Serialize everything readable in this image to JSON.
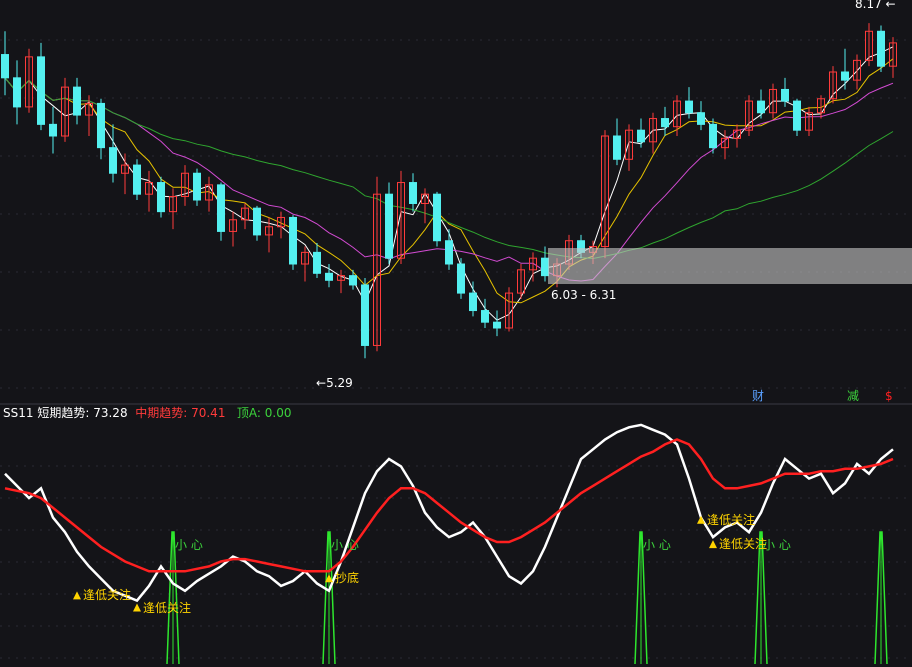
{
  "chart_data": [
    {
      "type": "candlestick",
      "price_labels": {
        "top_high": "8.17",
        "low_marker": "5.29",
        "range_band": "6.03 - 6.31"
      },
      "ylim": [
        5.0,
        8.3
      ],
      "band_range": [
        6.03,
        6.31
      ],
      "ohlc": [
        [
          7.9,
          8.1,
          7.55,
          7.7
        ],
        [
          7.7,
          7.85,
          7.3,
          7.45
        ],
        [
          7.45,
          7.95,
          7.4,
          7.88
        ],
        [
          7.88,
          8.0,
          7.25,
          7.3
        ],
        [
          7.3,
          7.45,
          7.05,
          7.2
        ],
        [
          7.2,
          7.7,
          7.15,
          7.62
        ],
        [
          7.62,
          7.7,
          7.3,
          7.38
        ],
        [
          7.38,
          7.55,
          7.2,
          7.48
        ],
        [
          7.48,
          7.52,
          7.0,
          7.1
        ],
        [
          7.1,
          7.3,
          6.8,
          6.88
        ],
        [
          6.88,
          7.05,
          6.7,
          6.95
        ],
        [
          6.95,
          7.0,
          6.65,
          6.7
        ],
        [
          6.7,
          6.9,
          6.55,
          6.8
        ],
        [
          6.8,
          6.85,
          6.5,
          6.55
        ],
        [
          6.55,
          6.75,
          6.4,
          6.68
        ],
        [
          6.68,
          6.95,
          6.6,
          6.88
        ],
        [
          6.88,
          6.92,
          6.6,
          6.65
        ],
        [
          6.65,
          6.85,
          6.55,
          6.78
        ],
        [
          6.78,
          6.8,
          6.3,
          6.38
        ],
        [
          6.38,
          6.55,
          6.25,
          6.48
        ],
        [
          6.48,
          6.62,
          6.4,
          6.58
        ],
        [
          6.58,
          6.6,
          6.3,
          6.35
        ],
        [
          6.35,
          6.5,
          6.2,
          6.42
        ],
        [
          6.42,
          6.55,
          6.32,
          6.5
        ],
        [
          6.5,
          6.52,
          6.05,
          6.1
        ],
        [
          6.1,
          6.25,
          5.95,
          6.2
        ],
        [
          6.2,
          6.28,
          5.98,
          6.02
        ],
        [
          6.02,
          6.1,
          5.9,
          5.96
        ],
        [
          5.96,
          6.05,
          5.85,
          6.0
        ],
        [
          6.0,
          6.05,
          5.88,
          5.92
        ],
        [
          5.92,
          5.98,
          5.29,
          5.4
        ],
        [
          5.4,
          6.85,
          5.35,
          6.7
        ],
        [
          6.7,
          6.8,
          6.1,
          6.15
        ],
        [
          6.15,
          6.9,
          6.1,
          6.8
        ],
        [
          6.8,
          6.88,
          6.55,
          6.62
        ],
        [
          6.62,
          6.75,
          6.45,
          6.7
        ],
        [
          6.7,
          6.72,
          6.25,
          6.3
        ],
        [
          6.3,
          6.4,
          6.05,
          6.1
        ],
        [
          6.1,
          6.15,
          5.8,
          5.85
        ],
        [
          5.85,
          5.95,
          5.65,
          5.7
        ],
        [
          5.7,
          5.8,
          5.55,
          5.6
        ],
        [
          5.6,
          5.7,
          5.48,
          5.55
        ],
        [
          5.55,
          5.9,
          5.52,
          5.85
        ],
        [
          5.85,
          6.1,
          5.8,
          6.05
        ],
        [
          6.05,
          6.2,
          5.95,
          6.15
        ],
        [
          6.15,
          6.25,
          5.95,
          6.0
        ],
        [
          6.0,
          6.15,
          5.9,
          6.1
        ],
        [
          6.1,
          6.35,
          6.05,
          6.3
        ],
        [
          6.3,
          6.35,
          6.15,
          6.2
        ],
        [
          6.2,
          6.3,
          6.1,
          6.25
        ],
        [
          6.25,
          7.25,
          6.15,
          7.2
        ],
        [
          7.2,
          7.35,
          6.95,
          7.0
        ],
        [
          7.0,
          7.3,
          6.9,
          7.25
        ],
        [
          7.25,
          7.35,
          7.1,
          7.15
        ],
        [
          7.15,
          7.4,
          7.05,
          7.35
        ],
        [
          7.35,
          7.45,
          7.2,
          7.28
        ],
        [
          7.28,
          7.55,
          7.2,
          7.5
        ],
        [
          7.5,
          7.62,
          7.35,
          7.4
        ],
        [
          7.4,
          7.5,
          7.25,
          7.3
        ],
        [
          7.3,
          7.35,
          7.05,
          7.1
        ],
        [
          7.1,
          7.25,
          7.0,
          7.18
        ],
        [
          7.18,
          7.3,
          7.1,
          7.25
        ],
        [
          7.25,
          7.55,
          7.2,
          7.5
        ],
        [
          7.5,
          7.6,
          7.35,
          7.4
        ],
        [
          7.4,
          7.65,
          7.35,
          7.6
        ],
        [
          7.6,
          7.7,
          7.45,
          7.5
        ],
        [
          7.5,
          7.52,
          7.2,
          7.25
        ],
        [
          7.25,
          7.45,
          7.2,
          7.4
        ],
        [
          7.4,
          7.55,
          7.35,
          7.52
        ],
        [
          7.52,
          7.8,
          7.48,
          7.75
        ],
        [
          7.75,
          7.95,
          7.6,
          7.68
        ],
        [
          7.68,
          7.9,
          7.6,
          7.85
        ],
        [
          7.85,
          8.17,
          7.8,
          8.1
        ],
        [
          8.1,
          8.15,
          7.75,
          7.8
        ],
        [
          7.8,
          8.05,
          7.7,
          8.0
        ]
      ],
      "annotations_right": [
        {
          "text": "财",
          "color": "#5aa0ff"
        },
        {
          "text": "减",
          "color": "#3cd23c"
        },
        {
          "text": "$",
          "color": "#ff2020"
        }
      ]
    },
    {
      "type": "line",
      "header": {
        "name": "SS11",
        "short_label": "短期趋势:",
        "short_value": "73.28",
        "mid_label": "中期趋势:",
        "mid_value": "70.41",
        "top_label": "顶A:",
        "top_value": "0.00"
      },
      "ylim": [
        0,
        100
      ],
      "short_trend": [
        78,
        73,
        68,
        72,
        60,
        54,
        46,
        40,
        35,
        30,
        28,
        26,
        32,
        40,
        33,
        30,
        34,
        37,
        40,
        44,
        42,
        38,
        36,
        32,
        34,
        38,
        33,
        30,
        42,
        56,
        70,
        79,
        84,
        81,
        73,
        62,
        56,
        52,
        54,
        58,
        52,
        44,
        36,
        33,
        38,
        48,
        60,
        72,
        84,
        88,
        92,
        95,
        97,
        98,
        96,
        94,
        90,
        76,
        60,
        52,
        56,
        58,
        54,
        62,
        74,
        84,
        80,
        76,
        78,
        70,
        74,
        82,
        78,
        84,
        88
      ],
      "mid_trend": [
        72,
        71,
        70,
        68,
        64,
        60,
        56,
        52,
        48,
        45,
        42,
        40,
        38,
        38,
        38,
        38,
        39,
        40,
        42,
        43,
        43,
        42,
        41,
        40,
        39,
        38,
        38,
        38,
        42,
        48,
        55,
        62,
        68,
        72,
        72,
        70,
        66,
        62,
        58,
        55,
        52,
        50,
        50,
        52,
        55,
        58,
        62,
        66,
        70,
        73,
        76,
        79,
        82,
        85,
        87,
        90,
        92,
        90,
        84,
        76,
        72,
        72,
        73,
        74,
        76,
        78,
        78,
        78,
        79,
        79,
        80,
        80,
        81,
        82,
        84
      ],
      "spikes": [
        {
          "i": 14,
          "label": "小 心"
        },
        {
          "i": 27,
          "label": "小 心"
        },
        {
          "i": 53,
          "label": "小 心"
        },
        {
          "i": 63,
          "label": "小 心"
        },
        {
          "i": 73,
          "label": ""
        }
      ],
      "signals": [
        {
          "i": 6,
          "value": 31,
          "label": "逢低关注"
        },
        {
          "i": 11,
          "value": 26,
          "label": "逢低关注"
        },
        {
          "i": 27,
          "value": 38,
          "label": "抄底"
        },
        {
          "i": 58,
          "value": 62,
          "label": "逢低关注"
        },
        {
          "i": 59,
          "value": 52,
          "label": "逢低关注"
        }
      ]
    }
  ]
}
